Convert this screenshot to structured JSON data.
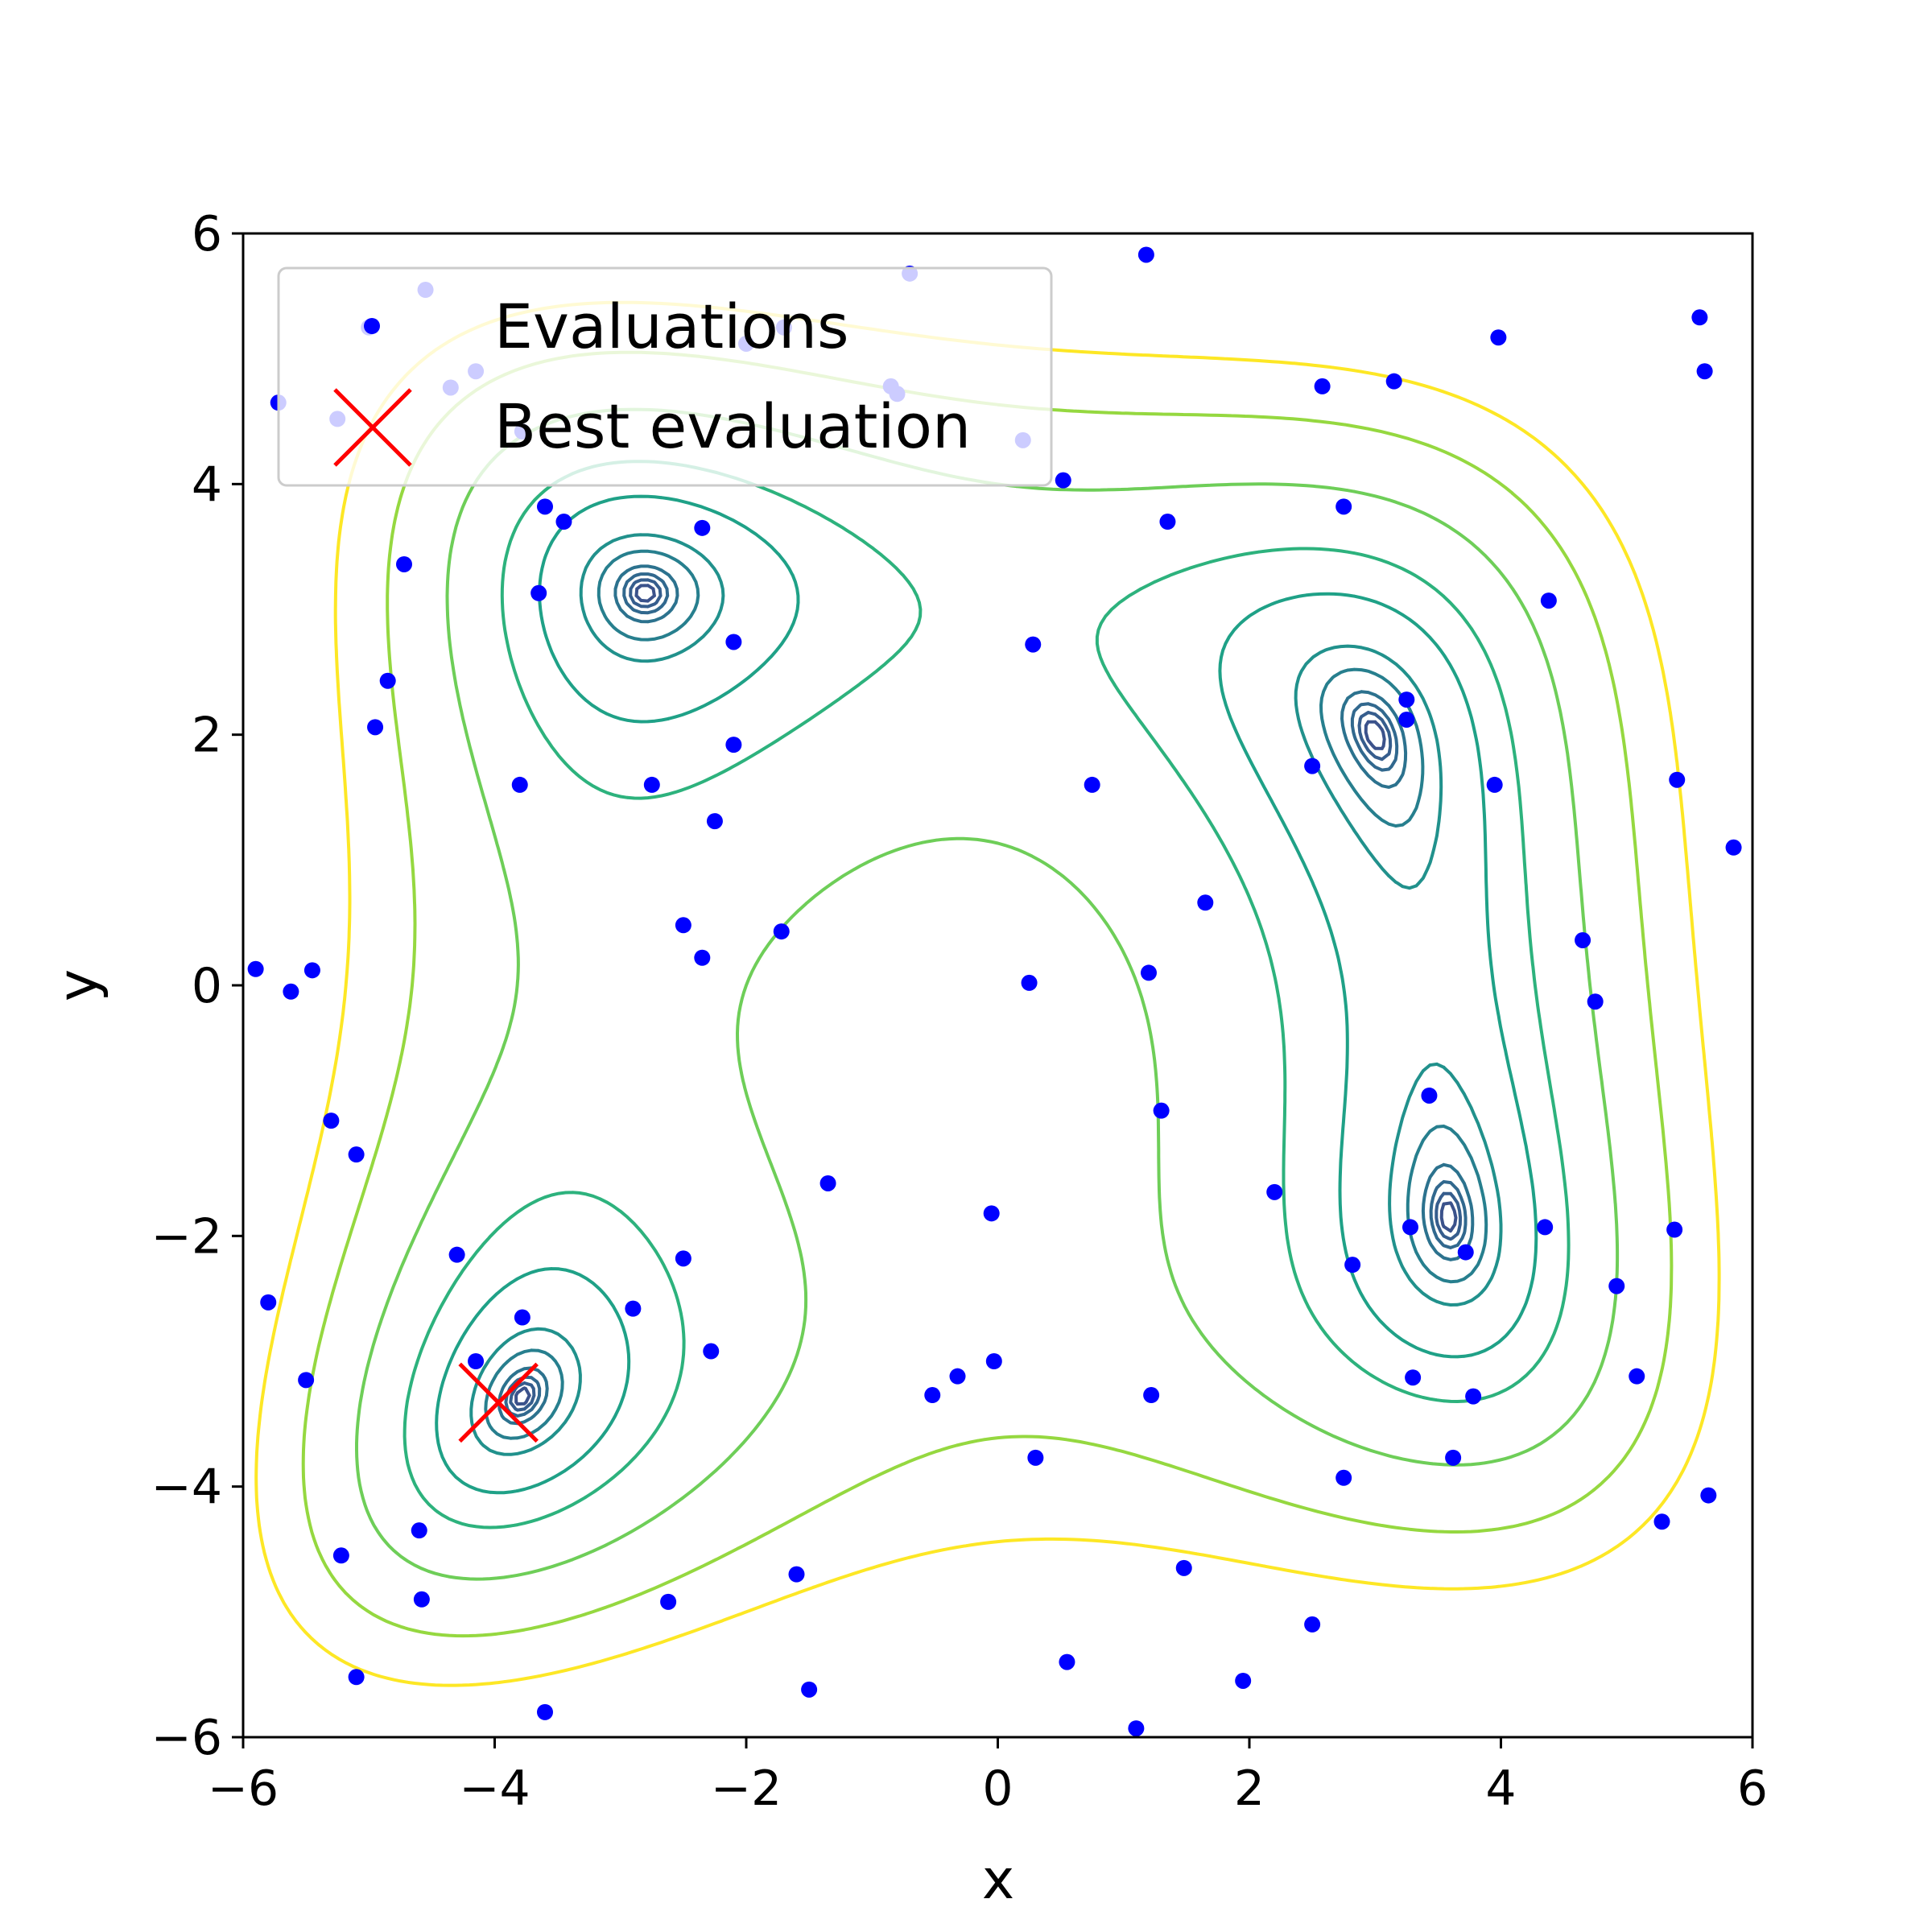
{
  "chart_data": {
    "type": "scatter",
    "title": "",
    "xlabel": "x",
    "ylabel": "y",
    "xlim": [
      -6,
      6
    ],
    "ylim": [
      -6,
      6
    ],
    "grid": false,
    "legend_placement": "top-left",
    "x_ticks": [
      -6,
      -4,
      -2,
      0,
      2,
      4,
      6
    ],
    "y_ticks": [
      -6,
      -4,
      -2,
      0,
      2,
      4,
      6
    ],
    "x_tick_labels": [
      "−6",
      "−4",
      "−2",
      "0",
      "2",
      "4",
      "6"
    ],
    "y_tick_labels": [
      "−6",
      "−4",
      "−2",
      "0",
      "2",
      "4",
      "6"
    ],
    "contour_background": "Himmelblau-type function with four minima at (3.0, 2.0), (-2.8, 3.13), (-3.78, -3.28), (3.58, -1.85)",
    "contour_levels": [
      0.2,
      0.5,
      1,
      2,
      5,
      10,
      30,
      60,
      130,
      250,
      400
    ],
    "contour_colors": [
      "#3b528b",
      "#365d8d",
      "#31688e",
      "#2c728e",
      "#277f8e",
      "#21918c",
      "#1fa187",
      "#2db27d",
      "#6ece58",
      "#95d840",
      "#fde725"
    ],
    "series": [
      {
        "name": "Evaluations",
        "color": "#0000ff",
        "marker": "circle",
        "points": [
          [
            -5.9,
            0.13
          ],
          [
            -5.72,
            4.65
          ],
          [
            -5.62,
            -0.05
          ],
          [
            -5.45,
            0.12
          ],
          [
            -5.8,
            -2.53
          ],
          [
            -5.5,
            -3.15
          ],
          [
            -5.3,
            -1.08
          ],
          [
            -5.25,
            4.52
          ],
          [
            -5.1,
            -1.35
          ],
          [
            -5.22,
            -4.55
          ],
          [
            -5.1,
            -5.52
          ],
          [
            -5.0,
            5.25
          ],
          [
            -4.95,
            2.06
          ],
          [
            -4.85,
            2.43
          ],
          [
            -4.72,
            3.36
          ],
          [
            -4.55,
            5.55
          ],
          [
            -4.35,
            4.77
          ],
          [
            -4.15,
            4.9
          ],
          [
            -4.6,
            -4.35
          ],
          [
            -4.58,
            -4.9
          ],
          [
            -4.3,
            -2.15
          ],
          [
            -4.15,
            -3.0
          ],
          [
            -3.8,
            1.6
          ],
          [
            -3.78,
            4.42
          ],
          [
            -3.78,
            -2.65
          ],
          [
            -3.6,
            3.82
          ],
          [
            -3.65,
            3.13
          ],
          [
            -3.45,
            3.7
          ],
          [
            -3.6,
            -5.8
          ],
          [
            -2.9,
            -2.58
          ],
          [
            -2.75,
            1.6
          ],
          [
            -2.62,
            -4.92
          ],
          [
            -2.5,
            -2.18
          ],
          [
            -2.5,
            0.48
          ],
          [
            -2.35,
            3.65
          ],
          [
            -2.35,
            0.22
          ],
          [
            -2.25,
            1.31
          ],
          [
            -2.28,
            -2.92
          ],
          [
            -2.1,
            2.74
          ],
          [
            -2.1,
            1.92
          ],
          [
            -2.0,
            5.12
          ],
          [
            -1.7,
            5.25
          ],
          [
            -1.72,
            0.43
          ],
          [
            -1.6,
            -4.7
          ],
          [
            -1.5,
            -5.62
          ],
          [
            -1.35,
            -1.58
          ],
          [
            -0.85,
            4.78
          ],
          [
            -0.8,
            4.72
          ],
          [
            -0.7,
            5.68
          ],
          [
            -0.52,
            -3.27
          ],
          [
            -0.32,
            -3.12
          ],
          [
            -0.05,
            -1.82
          ],
          [
            -0.03,
            -3.0
          ],
          [
            0.2,
            4.35
          ],
          [
            0.25,
            0.02
          ],
          [
            0.28,
            2.72
          ],
          [
            0.3,
            -3.77
          ],
          [
            0.52,
            4.03
          ],
          [
            0.55,
            -5.4
          ],
          [
            0.75,
            1.6
          ],
          [
            1.1,
            -5.93
          ],
          [
            1.18,
            5.83
          ],
          [
            1.2,
            0.1
          ],
          [
            1.22,
            -3.27
          ],
          [
            1.3,
            -1.0
          ],
          [
            1.35,
            3.7
          ],
          [
            1.48,
            -4.65
          ],
          [
            1.65,
            0.66
          ],
          [
            1.95,
            -5.55
          ],
          [
            2.2,
            -1.65
          ],
          [
            2.5,
            1.75
          ],
          [
            2.5,
            -5.1
          ],
          [
            2.58,
            4.78
          ],
          [
            2.75,
            3.82
          ],
          [
            2.75,
            -3.93
          ],
          [
            2.82,
            -2.23
          ],
          [
            3.15,
            4.82
          ],
          [
            3.25,
            2.12
          ],
          [
            3.25,
            2.28
          ],
          [
            3.28,
            -1.93
          ],
          [
            3.3,
            -3.13
          ],
          [
            3.43,
            -0.88
          ],
          [
            3.62,
            -3.77
          ],
          [
            3.72,
            -2.13
          ],
          [
            3.78,
            -3.28
          ],
          [
            3.95,
            1.6
          ],
          [
            3.98,
            5.17
          ],
          [
            4.35,
            -1.93
          ],
          [
            4.38,
            3.07
          ],
          [
            4.65,
            0.36
          ],
          [
            4.75,
            -0.13
          ],
          [
            4.92,
            -2.4
          ],
          [
            5.08,
            -3.12
          ],
          [
            5.28,
            -4.28
          ],
          [
            5.38,
            -1.95
          ],
          [
            5.4,
            1.64
          ],
          [
            5.58,
            5.33
          ],
          [
            5.62,
            4.9
          ],
          [
            5.65,
            -4.07
          ],
          [
            5.85,
            1.1
          ]
        ]
      },
      {
        "name": "Best evaluation",
        "color": "#ff0000",
        "marker": "x",
        "points": [
          [
            -3.97,
            -3.33
          ]
        ]
      }
    ]
  }
}
